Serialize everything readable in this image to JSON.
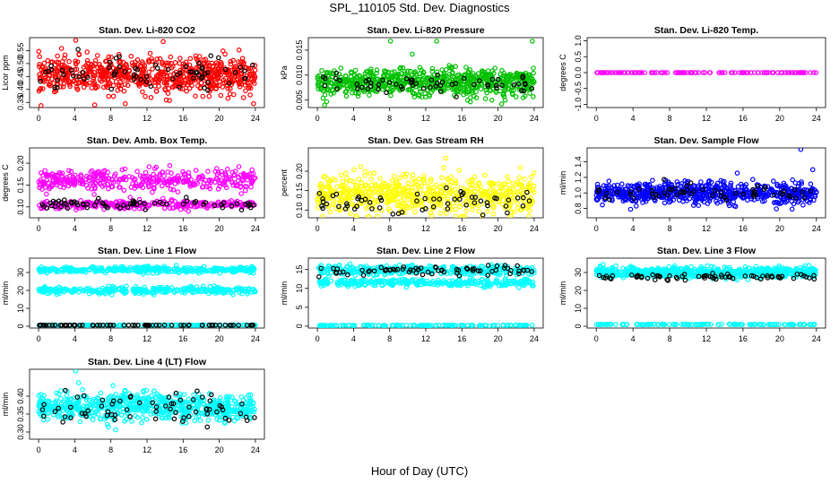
{
  "figure": {
    "title": "SPL_110105  Std. Dev. Diagnostics",
    "xlabel": "Hour of Day (UTC)"
  },
  "chart_data": [
    {
      "type": "scatter",
      "title": "Stan. Dev. Li-820 CO2",
      "ylabel": "Licor ppm",
      "xlim": [
        -1,
        25
      ],
      "ylim": [
        0.33,
        0.6
      ],
      "xticks": [
        "0",
        "4",
        "8",
        "12",
        "16",
        "20",
        "24"
      ],
      "yticks": [
        "0.35",
        "0.40",
        "0.45",
        "0.50",
        "0.55"
      ],
      "series": [
        {
          "name": "all",
          "color": "#ff0000",
          "n": 700,
          "center": 0.455,
          "spread": 0.045,
          "outliers": [
            [
              4.1,
              0.59
            ],
            [
              13.8,
              0.585
            ],
            [
              6.2,
              0.34
            ],
            [
              9.6,
              0.345
            ],
            [
              23.8,
              0.345
            ]
          ]
        },
        {
          "name": "black",
          "color": "#000000",
          "n": 70,
          "center": 0.46,
          "spread": 0.04
        }
      ]
    },
    {
      "type": "scatter",
      "title": "Stan. Dev. Li-820 Pressure",
      "ylabel": "kPa",
      "xlim": [
        -1,
        25
      ],
      "ylim": [
        0.0035,
        0.0175
      ],
      "xticks": [
        "0",
        "4",
        "8",
        "12",
        "16",
        "20",
        "24"
      ],
      "yticks": [
        "0.005",
        "0.010",
        "0.015"
      ],
      "series": [
        {
          "name": "all",
          "color": "#00c000",
          "n": 700,
          "center": 0.0085,
          "spread": 0.0018,
          "outliers": [
            [
              8.1,
              0.0168
            ],
            [
              13.2,
              0.0168
            ],
            [
              23.8,
              0.0168
            ],
            [
              10.5,
              0.0142
            ],
            [
              20.4,
              0.0042
            ]
          ]
        },
        {
          "name": "black",
          "color": "#000000",
          "n": 60,
          "center": 0.0083,
          "spread": 0.0012
        }
      ]
    },
    {
      "type": "scatter",
      "title": "Stan. Dev. Li-820 Temp.",
      "ylabel": "degrees C",
      "xlim": [
        -1,
        25
      ],
      "ylim": [
        -1.1,
        1.1
      ],
      "xticks": [
        "0",
        "4",
        "8",
        "12",
        "16",
        "20",
        "24"
      ],
      "yticks": [
        "-1.0",
        "-0.5",
        "0.0",
        "0.5",
        "1.0"
      ],
      "series": [
        {
          "name": "all",
          "color": "#ff00ff",
          "n": 120,
          "center": 0.0,
          "spread": 0.0
        },
        {
          "name": "black",
          "color": "#000000",
          "n": 0,
          "center": 0.0,
          "spread": 0.0
        }
      ]
    },
    {
      "type": "scatter",
      "title": "Stan. Dev. Amb. Box Temp.",
      "ylabel": "degrees C",
      "xlim": [
        -1,
        25
      ],
      "ylim": [
        0.075,
        0.235
      ],
      "xticks": [
        "0",
        "4",
        "8",
        "12",
        "16",
        "20",
        "24"
      ],
      "yticks": [
        "0.10",
        "0.15",
        "0.20"
      ],
      "series": [
        {
          "name": "upper band",
          "color": "#ff00ff",
          "n": 380,
          "center": 0.16,
          "spread": 0.017
        },
        {
          "name": "lower band",
          "color": "#ff00ff",
          "n": 300,
          "center": 0.105,
          "spread": 0.006
        },
        {
          "name": "black",
          "color": "#000000",
          "n": 70,
          "center": 0.107,
          "spread": 0.007
        }
      ]
    },
    {
      "type": "scatter",
      "title": "Stan. Dev. Gas Stream RH",
      "ylabel": "percent",
      "xlim": [
        -1,
        25
      ],
      "ylim": [
        0.08,
        0.26
      ],
      "xticks": [
        "0",
        "4",
        "8",
        "12",
        "16",
        "20",
        "24"
      ],
      "yticks": [
        "0.10",
        "0.15",
        "0.20"
      ],
      "series": [
        {
          "name": "all",
          "color": "#ffff00",
          "n": 600,
          "center": 0.14,
          "spread": 0.035
        },
        {
          "name": "black",
          "color": "#000000",
          "n": 60,
          "center": 0.12,
          "spread": 0.02
        }
      ]
    },
    {
      "type": "scatter",
      "title": "Stan. Dev. Sample Flow",
      "ylabel": "ml/min",
      "xlim": [
        -1,
        25
      ],
      "ylim": [
        0.68,
        1.58
      ],
      "xticks": [
        "0",
        "4",
        "8",
        "12",
        "16",
        "20",
        "24"
      ],
      "yticks": [
        "0.8",
        "1.0",
        "1.2",
        "1.4"
      ],
      "series": [
        {
          "name": "all",
          "color": "#0000ff",
          "n": 700,
          "center": 1.0,
          "spread": 0.09,
          "outliers": [
            [
              22.3,
              1.56
            ],
            [
              23.6,
              1.3
            ]
          ]
        },
        {
          "name": "black",
          "color": "#000000",
          "n": 60,
          "center": 1.0,
          "spread": 0.07
        }
      ]
    },
    {
      "type": "scatter",
      "title": "Stan. Dev. Line 1 Flow",
      "ylabel": "ml/min",
      "xlim": [
        -1,
        25
      ],
      "ylim": [
        -1,
        38
      ],
      "xticks": [
        "0",
        "4",
        "8",
        "12",
        "16",
        "20",
        "24"
      ],
      "yticks": [
        "0",
        "10",
        "20",
        "30"
      ],
      "series": [
        {
          "name": "upper band",
          "color": "#00ffff",
          "n": 380,
          "center": 31.5,
          "spread": 1.1
        },
        {
          "name": "middle band",
          "color": "#00ffff",
          "n": 320,
          "center": 20.0,
          "spread": 1.2
        },
        {
          "name": "bottom",
          "color": "#00ffff",
          "n": 140,
          "center": 0.6,
          "spread": 0.1
        },
        {
          "name": "black",
          "color": "#000000",
          "n": 70,
          "center": 0.6,
          "spread": 0.05
        }
      ]
    },
    {
      "type": "scatter",
      "title": "Stan. Dev. Line 2 Flow",
      "ylabel": "ml/min",
      "xlim": [
        -1,
        25
      ],
      "ylim": [
        -0.5,
        18
      ],
      "xticks": [
        "0",
        "4",
        "8",
        "12",
        "16",
        "20",
        "24"
      ],
      "yticks": [
        "0",
        "5",
        "10",
        "15"
      ],
      "series": [
        {
          "name": "upper band",
          "color": "#00ffff",
          "n": 380,
          "center": 14.8,
          "spread": 0.8
        },
        {
          "name": "middle band",
          "color": "#00ffff",
          "n": 320,
          "center": 11.5,
          "spread": 0.6
        },
        {
          "name": "bottom",
          "color": "#00ffff",
          "n": 140,
          "center": 0.2,
          "spread": 0.05
        },
        {
          "name": "black",
          "color": "#000000",
          "n": 70,
          "center": 14.8,
          "spread": 0.9
        }
      ]
    },
    {
      "type": "scatter",
      "title": "Stan. Dev. Line 3 Flow",
      "ylabel": "ml/min",
      "xlim": [
        -1,
        25
      ],
      "ylim": [
        -1,
        38
      ],
      "xticks": [
        "0",
        "4",
        "8",
        "12",
        "16",
        "20",
        "24"
      ],
      "yticks": [
        "0",
        "10",
        "20",
        "30"
      ],
      "series": [
        {
          "name": "upper band",
          "color": "#00ffff",
          "n": 640,
          "center": 30.0,
          "spread": 2.0
        },
        {
          "name": "bottom",
          "color": "#00ffff",
          "n": 140,
          "center": 1.0,
          "spread": 0.1
        },
        {
          "name": "black",
          "color": "#000000",
          "n": 70,
          "center": 27.5,
          "spread": 1.3
        }
      ]
    },
    {
      "type": "scatter",
      "title": "Stan. Dev. Line 4 (LT) Flow",
      "ylabel": "ml/min",
      "xlim": [
        -1,
        25
      ],
      "ylim": [
        0.28,
        0.475
      ],
      "xticks": [
        "0",
        "4",
        "8",
        "12",
        "16",
        "20",
        "24"
      ],
      "yticks": [
        "0.30",
        "0.35",
        "0.40"
      ],
      "series": [
        {
          "name": "all",
          "color": "#00ffff",
          "n": 700,
          "center": 0.37,
          "spread": 0.025,
          "outliers": [
            [
              4.1,
              0.47
            ],
            [
              11.6,
              0.415
            ]
          ]
        },
        {
          "name": "black",
          "color": "#000000",
          "n": 70,
          "center": 0.365,
          "spread": 0.025
        }
      ]
    }
  ]
}
